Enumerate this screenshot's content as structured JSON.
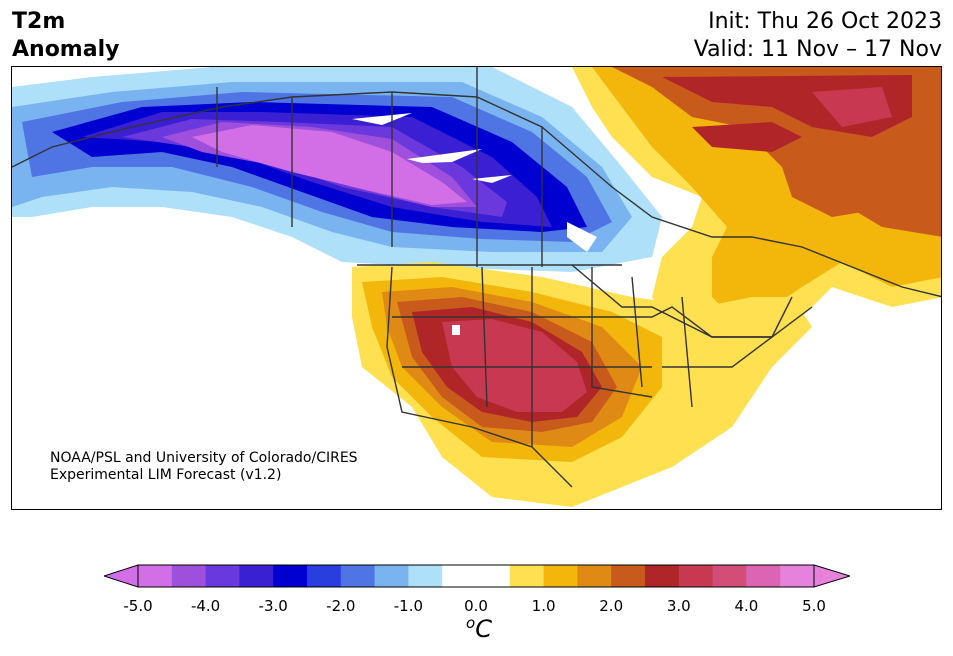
{
  "header": {
    "title_line1": "T2m",
    "title_line2": "Anomaly",
    "init": "Init: Thu 26 Oct 2023",
    "valid": "Valid: 11 Nov – 17 Nov"
  },
  "credit": {
    "line1": "NOAA/PSL and University of Colorado/CIRES",
    "line2": "Experimental LIM Forecast (v1.2)"
  },
  "colorbar": {
    "ticks": [
      "-5.0",
      "-4.0",
      "-3.0",
      "-2.0",
      "-1.0",
      "0.0",
      "1.0",
      "2.0",
      "3.0",
      "4.0",
      "5.0"
    ],
    "unit_base": "C",
    "unit_sup": "o",
    "colors": [
      "#d26ee6",
      "#9e4fdc",
      "#6a38dc",
      "#3a20d2",
      "#0000d0",
      "#2a3ee0",
      "#4f74e4",
      "#7ab4f0",
      "#aee0fa",
      "#ffffff",
      "#ffffff",
      "#ffe050",
      "#f2b70a",
      "#e08a16",
      "#c85a1c",
      "#b02628",
      "#c83850",
      "#d24e78",
      "#dc64b4",
      "#e682dc"
    ],
    "under_color": "#d26ee6",
    "over_color": "#e682dc"
  },
  "map_data": {
    "region": "North America",
    "variable": "2 m temperature anomaly",
    "cold_anomaly_center": "western Canada",
    "warm_anomaly_center": "southwestern/central United States",
    "secondary_warm_region": "eastern Canada and Greenland"
  }
}
